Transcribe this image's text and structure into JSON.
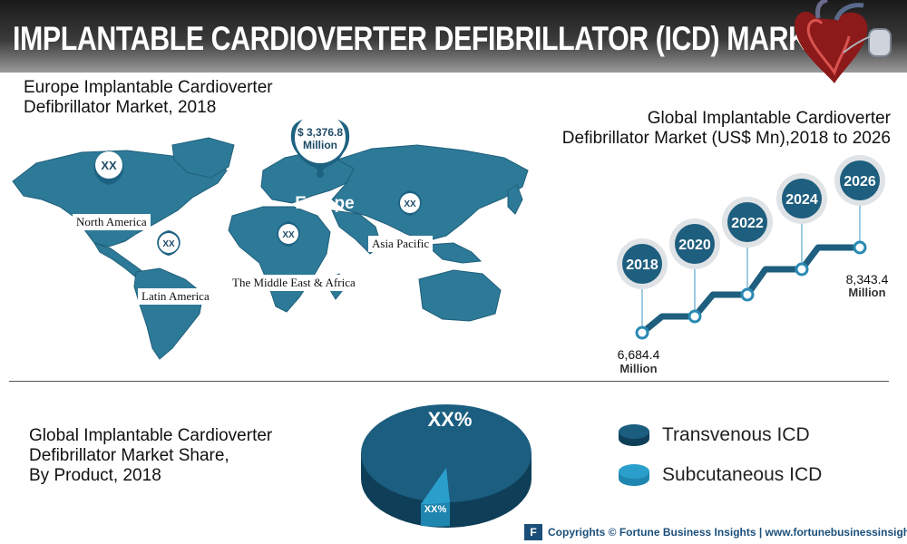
{
  "header": {
    "title": "IMPLANTABLE CARDIOVERTER DEFIBRILLATOR (ICD) MARKET"
  },
  "europe_section": {
    "title_line1": "Europe Implantable Cardioverter",
    "title_line2": "Defibrillator Market, 2018",
    "europe_value_line1": "$ 3,376.8",
    "europe_value_line2": "Million",
    "europe_label": "Europe",
    "regions": [
      {
        "name": "North America",
        "value": "XX"
      },
      {
        "name": "Latin America",
        "value": "XX"
      },
      {
        "name": "The Middle East & Africa",
        "value": "XX"
      },
      {
        "name": "Asia Pacific",
        "value": "XX"
      }
    ]
  },
  "global_section": {
    "title_line1": "Global Implantable Cardioverter",
    "title_line2": "Defibrillator Market (US$ Mn),2018 to 2026",
    "years": [
      "2018",
      "2020",
      "2022",
      "2024",
      "2026"
    ],
    "start_value": "6,684.4",
    "start_unit": "Million",
    "end_value": "8,343.4",
    "end_unit": "Million"
  },
  "share_section": {
    "title_line1": "Global Implantable Cardioverter",
    "title_line2": "Defibrillator Market Share,",
    "title_line3": "By Product, 2018",
    "major_label": "XX%",
    "minor_label": "XX%",
    "legend": [
      {
        "label": "Transvenous ICD",
        "color": "#1b5e80"
      },
      {
        "label": "Subcutaneous ICD",
        "color": "#2a9fcc"
      }
    ]
  },
  "footer": {
    "logo": "F",
    "text": "Copyrights © Fortune Business Insights | www.fortunebusinessinsights.com"
  },
  "colors": {
    "map": "#2d7a98",
    "pin": "#1e6282",
    "accent": "#1b5e80"
  }
}
